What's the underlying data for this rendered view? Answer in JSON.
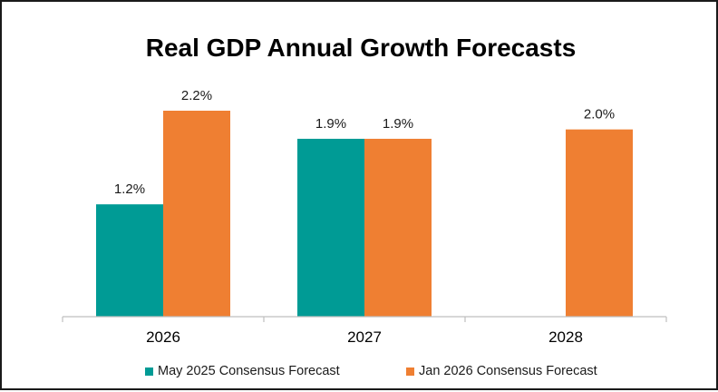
{
  "chart_data": {
    "type": "bar",
    "title": "Real GDP Annual Growth Forecasts",
    "categories": [
      "2026",
      "2027",
      "2028"
    ],
    "series": [
      {
        "name": "May 2025 Consensus Forecast",
        "color": "#009b95",
        "values": [
          1.2,
          1.9,
          null
        ],
        "labels": [
          "1.2%",
          "1.9%",
          ""
        ]
      },
      {
        "name": "Jan 2026 Consensus Forecast",
        "color": "#ef7f32",
        "values": [
          2.2,
          1.9,
          2.0
        ],
        "labels": [
          "2.2%",
          "1.9%",
          "2.0%"
        ]
      }
    ],
    "ylim": [
      0,
      2.5
    ],
    "grid": false,
    "legend": "bottom",
    "axis_color": "#bfbfbf"
  }
}
